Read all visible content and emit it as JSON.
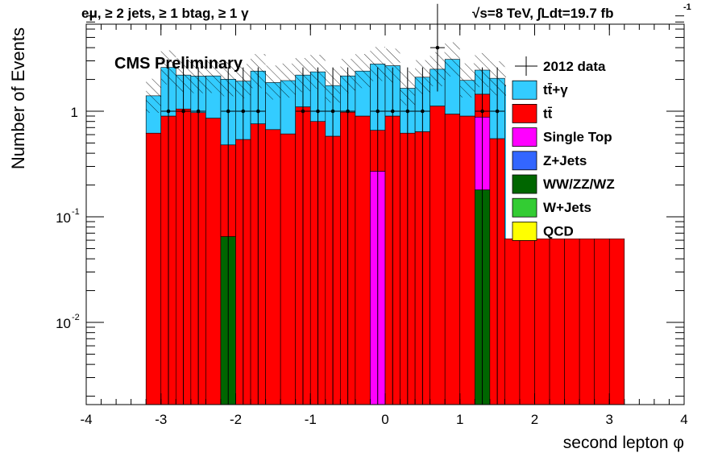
{
  "header": {
    "left": "eμ, ≥ 2 jets, ≥ 1 btag, ≥ 1 γ",
    "right": "√s=8 TeV,  ∫Ldt=19.7 fb",
    "right_sup": "-1"
  },
  "cms_label": "CMS Preliminary",
  "colors": {
    "ttgamma": "#33ccff",
    "ttbar": "#ff0000",
    "single_top": "#ff00ff",
    "zjets": "#3366ff",
    "diboson": "#006600",
    "wjets": "#33cc33",
    "qcd": "#ffff00",
    "data": "#000000"
  },
  "chart_data": {
    "type": "bar",
    "stacked": true,
    "log_y": true,
    "xlabel": "second lepton  φ",
    "ylabel": "Number of Events",
    "xlim": [
      -4,
      4
    ],
    "ylim": [
      0.0015,
      8
    ],
    "x_ticks": [
      -4,
      -3,
      -2,
      -1,
      0,
      1,
      2,
      3,
      4
    ],
    "x_tick_labels": [
      "-4",
      "-3",
      "-2",
      "-1",
      "0",
      "1",
      "2",
      "3",
      "4"
    ],
    "y_tick_labels": [
      {
        "value": 1,
        "base": "1",
        "exp": ""
      },
      {
        "value": 0.1,
        "base": "10",
        "exp": "-1"
      },
      {
        "value": 0.01,
        "base": "10",
        "exp": "-2"
      }
    ],
    "bin_edges": [
      -3.2,
      -3.0,
      -2.8,
      -2.6,
      -2.4,
      -2.2,
      -2.0,
      -1.8,
      -1.6,
      -1.4,
      -1.2,
      -1.0,
      -0.8,
      -0.6,
      -0.4,
      -0.2,
      0.0,
      0.2,
      0.4,
      0.6,
      0.8,
      1.0,
      1.2,
      1.4,
      1.6,
      1.8,
      2.0,
      2.2,
      2.4,
      2.6,
      2.8,
      3.0,
      3.2
    ],
    "series": [
      {
        "name": "WW/ZZ/WZ",
        "key": "diboson",
        "values": [
          0,
          0,
          0,
          0,
          0,
          0.065,
          0,
          0,
          0,
          0,
          0,
          0,
          0,
          0,
          0,
          0,
          0,
          0,
          0,
          0,
          0,
          0,
          0.18,
          0,
          0,
          0,
          0,
          0,
          0,
          0,
          0,
          0
        ]
      },
      {
        "name": "Single Top",
        "key": "single_top",
        "values": [
          0,
          0,
          0,
          0,
          0,
          0,
          0,
          0,
          0,
          0,
          0,
          0,
          0,
          0,
          0,
          0.27,
          0,
          0,
          0,
          0,
          0,
          0,
          0.7,
          0,
          0,
          0,
          0,
          0,
          0,
          0,
          0,
          0
        ]
      },
      {
        "name": "tt̄",
        "key": "ttbar",
        "values": [
          0.62,
          0.9,
          1.05,
          0.97,
          0.86,
          0.415,
          0.54,
          0.76,
          0.67,
          0.61,
          1.1,
          0.8,
          0.58,
          0.98,
          0.9,
          0.39,
          0.9,
          0.62,
          0.64,
          1.12,
          0.94,
          0.9,
          0.57,
          0.55,
          0.062,
          0.062,
          0.062,
          0.062,
          0.062,
          0.062,
          0.062,
          0.062
        ]
      },
      {
        "name": "tt̄+γ",
        "key": "ttgamma",
        "values": [
          0.78,
          1.7,
          1.15,
          1.18,
          1.3,
          1.53,
          1.39,
          1.64,
          1.2,
          1.34,
          1.1,
          1.56,
          1.17,
          1.18,
          1.5,
          2.14,
          1.8,
          1.03,
          1.46,
          1.38,
          2.16,
          1.06,
          1.0,
          1.5,
          1.7,
          1.4,
          1.5,
          1.5,
          1.3,
          1.2,
          1.0,
          1.0
        ]
      }
    ],
    "data_points": {
      "name": "2012 data",
      "x": [
        -2.9,
        -2.7,
        -2.5,
        -2.1,
        -1.9,
        -1.7,
        -1.1,
        -0.9,
        -0.7,
        -0.5,
        -0.1,
        0.1,
        0.3,
        0.5,
        0.7,
        1.3,
        1.5
      ],
      "y": [
        1,
        1,
        1,
        1,
        1,
        1,
        1,
        1,
        1,
        1,
        1,
        1,
        1,
        1,
        4,
        1,
        1
      ]
    },
    "legend": {
      "position": "top-right",
      "entries": [
        {
          "label": "2012 data",
          "key": "data",
          "style": "marker"
        },
        {
          "label": "tt̄+γ",
          "key": "ttgamma",
          "style": "box"
        },
        {
          "label": "tt̄",
          "key": "ttbar",
          "style": "box"
        },
        {
          "label": "Single Top",
          "key": "single_top",
          "style": "box"
        },
        {
          "label": "Z+Jets",
          "key": "zjets",
          "style": "box"
        },
        {
          "label": "WW/ZZ/WZ",
          "key": "diboson",
          "style": "box"
        },
        {
          "label": "W+Jets",
          "key": "wjets",
          "style": "box"
        },
        {
          "label": "QCD",
          "key": "qcd",
          "style": "box"
        }
      ]
    }
  }
}
